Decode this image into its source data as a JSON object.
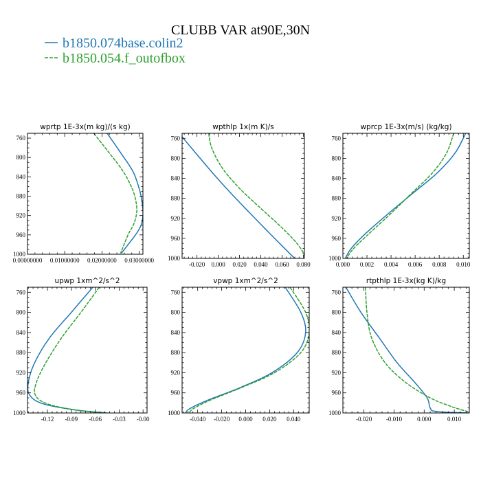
{
  "figure": {
    "title": "CLUBB VAR at90E,30N",
    "legend": [
      {
        "label": "b1850.074base.colin2",
        "color": "#1f77b4",
        "dashed": false
      },
      {
        "label": "b1850.054.f_outofbox",
        "color": "#2ca02c",
        "dashed": true
      }
    ]
  },
  "chart_data": [
    {
      "type": "line",
      "title": "wprtp  1E-3x(m kg)/(s kg)",
      "xlim": [
        0.0,
        0.031
      ],
      "ylim": [
        1000,
        750
      ],
      "xticks": [
        0.0,
        0.01,
        0.02,
        0.03
      ],
      "xtick_labels": [
        "0.00000000",
        "0.01000000",
        "0.02000000",
        "0.03000000"
      ],
      "yticks": [
        760,
        800,
        840,
        880,
        920,
        960,
        1000
      ],
      "ytick_labels": [
        "760",
        "800",
        "840",
        "880",
        "920",
        "960",
        "1000"
      ],
      "series": [
        {
          "name": "b1850.074base.colin2",
          "color": "#1f77b4",
          "dashed": false,
          "x": [
            0.0214,
            0.025,
            0.0284,
            0.0302,
            0.0309,
            0.031,
            0.0305,
            0.029,
            0.0252
          ],
          "y": [
            750,
            790,
            830,
            870,
            900,
            920,
            940,
            960,
            998
          ]
        },
        {
          "name": "b1850.054.f_outofbox",
          "color": "#2ca02c",
          "dashed": true,
          "x": [
            0.0178,
            0.0219,
            0.0258,
            0.0284,
            0.0293,
            0.0292,
            0.0284,
            0.027,
            0.025
          ],
          "y": [
            750,
            790,
            830,
            870,
            900,
            920,
            940,
            960,
            998
          ]
        }
      ]
    },
    {
      "type": "line",
      "title": "wpthlp  1x(m K)/s",
      "xlim": [
        -0.034,
        0.081
      ],
      "ylim": [
        1000,
        750
      ],
      "xticks": [
        -0.02,
        0.0,
        0.02,
        0.04,
        0.06,
        0.08
      ],
      "xtick_labels": [
        "-0.020",
        "0.000",
        "0.020",
        "0.040",
        "0.060",
        "0.080"
      ],
      "yticks": [
        760,
        800,
        840,
        880,
        920,
        960,
        1000
      ],
      "ytick_labels": [
        "760",
        "800",
        "840",
        "880",
        "920",
        "960",
        "1000"
      ],
      "series": [
        {
          "name": "b1850.074base.colin2",
          "color": "#1f77b4",
          "dashed": false,
          "x": [
            -0.034,
            -0.021,
            -0.005,
            0.012,
            0.03,
            0.046,
            0.06,
            0.068,
            0.072
          ],
          "y": [
            757,
            790,
            830,
            870,
            910,
            945,
            975,
            992,
            1000
          ]
        },
        {
          "name": "b1850.054.f_outofbox",
          "color": "#2ca02c",
          "dashed": true,
          "x": [
            -0.009,
            -0.006,
            0.004,
            0.02,
            0.04,
            0.058,
            0.072,
            0.079,
            0.081
          ],
          "y": [
            750,
            780,
            820,
            860,
            900,
            935,
            965,
            985,
            995
          ]
        }
      ]
    },
    {
      "type": "line",
      "title": "wprcp  1E-3x(m/s) (kg/kg)",
      "xlim": [
        0.0,
        0.0105
      ],
      "ylim": [
        1000,
        750
      ],
      "xticks": [
        0.0,
        0.002,
        0.004,
        0.006,
        0.008,
        0.01
      ],
      "xtick_labels": [
        "0.000",
        "0.002",
        "0.004",
        "0.006",
        "0.008",
        "0.010"
      ],
      "yticks": [
        760,
        800,
        840,
        880,
        920,
        960,
        1000
      ],
      "ytick_labels": [
        "760",
        "800",
        "840",
        "880",
        "920",
        "960",
        "1000"
      ],
      "series": [
        {
          "name": "b1850.074base.colin2",
          "color": "#1f77b4",
          "dashed": false,
          "x": [
            0.0102,
            0.0093,
            0.0078,
            0.0058,
            0.0038,
            0.0019,
            0.0007,
            0.0002
          ],
          "y": [
            750,
            790,
            830,
            870,
            910,
            950,
            980,
            1000
          ]
        },
        {
          "name": "b1850.054.f_outofbox",
          "color": "#2ca02c",
          "dashed": true,
          "x": [
            0.0092,
            0.0086,
            0.0074,
            0.0057,
            0.004,
            0.0022,
            0.0009,
            0.0003
          ],
          "y": [
            750,
            790,
            830,
            870,
            910,
            950,
            980,
            1000
          ]
        }
      ]
    },
    {
      "type": "line",
      "title": "upwp  1xm^2/s^2",
      "xlim": [
        -0.145,
        0.005
      ],
      "ylim": [
        1000,
        750
      ],
      "xticks": [
        -0.12,
        -0.09,
        -0.06,
        -0.03,
        0.0
      ],
      "xtick_labels": [
        "-0.12",
        "-0.09",
        "-0.06",
        "-0.03",
        "-0.00"
      ],
      "yticks": [
        760,
        800,
        840,
        880,
        920,
        960,
        1000
      ],
      "ytick_labels": [
        "760",
        "800",
        "840",
        "880",
        "920",
        "960",
        "1000"
      ],
      "series": [
        {
          "name": "b1850.074base.colin2",
          "color": "#1f77b4",
          "dashed": false,
          "x": [
            -0.063,
            -0.09,
            -0.117,
            -0.136,
            -0.144,
            -0.142,
            -0.125,
            -0.085,
            -0.045
          ],
          "y": [
            750,
            800,
            850,
            900,
            940,
            965,
            982,
            994,
            1000
          ]
        },
        {
          "name": "b1850.054.f_outofbox",
          "color": "#2ca02c",
          "dashed": true,
          "x": [
            -0.055,
            -0.078,
            -0.102,
            -0.122,
            -0.134,
            -0.135,
            -0.12,
            -0.085,
            -0.05
          ],
          "y": [
            750,
            800,
            850,
            900,
            940,
            965,
            982,
            994,
            1000
          ]
        }
      ]
    },
    {
      "type": "line",
      "title": "vpwp  1xm^2/s^2",
      "xlim": [
        -0.053,
        0.053
      ],
      "ylim": [
        1000,
        750
      ],
      "xticks": [
        -0.04,
        -0.02,
        0.0,
        0.02,
        0.04
      ],
      "xtick_labels": [
        "-0.040",
        "-0.020",
        "0.000",
        "0.020",
        "0.040"
      ],
      "yticks": [
        760,
        800,
        840,
        880,
        920,
        960,
        1000
      ],
      "ytick_labels": [
        "760",
        "800",
        "840",
        "880",
        "920",
        "960",
        "1000"
      ],
      "series": [
        {
          "name": "b1850.074base.colin2",
          "color": "#1f77b4",
          "dashed": false,
          "x": [
            0.033,
            0.046,
            0.05,
            0.043,
            0.022,
            -0.005,
            -0.032,
            -0.047,
            -0.05
          ],
          "y": [
            750,
            800,
            840,
            880,
            920,
            950,
            975,
            992,
            1000
          ]
        },
        {
          "name": "b1850.054.f_outofbox",
          "color": "#2ca02c",
          "dashed": true,
          "x": [
            0.037,
            0.05,
            0.053,
            0.046,
            0.024,
            -0.004,
            -0.03,
            -0.044,
            -0.047
          ],
          "y": [
            750,
            800,
            840,
            880,
            920,
            950,
            975,
            992,
            1000
          ]
        }
      ]
    },
    {
      "type": "line",
      "title": "rtpthlp  1E-3x(kg K)/kg",
      "xlim": [
        -0.027,
        0.015
      ],
      "ylim": [
        1000,
        750
      ],
      "xticks": [
        -0.02,
        -0.01,
        0.0,
        0.01
      ],
      "xtick_labels": [
        "-0.020",
        "-0.010",
        "0.000",
        "0.010"
      ],
      "yticks": [
        760,
        800,
        840,
        880,
        920,
        960,
        1000
      ],
      "ytick_labels": [
        "760",
        "800",
        "840",
        "880",
        "920",
        "960",
        "1000"
      ],
      "series": [
        {
          "name": "b1850.074base.colin2",
          "color": "#1f77b4",
          "dashed": false,
          "x": [
            -0.026,
            -0.021,
            -0.015,
            -0.009,
            -0.003,
            0.001,
            0.002,
            0.004,
            0.015
          ],
          "y": [
            750,
            800,
            850,
            900,
            940,
            970,
            990,
            997,
            1000
          ]
        },
        {
          "name": "b1850.054.f_outofbox",
          "color": "#2ca02c",
          "dashed": true,
          "x": [
            -0.0195,
            -0.019,
            -0.0175,
            -0.013,
            -0.006,
            0.002,
            0.008,
            0.012,
            0.015
          ],
          "y": [
            750,
            800,
            850,
            900,
            940,
            970,
            985,
            993,
            998
          ]
        }
      ]
    }
  ]
}
